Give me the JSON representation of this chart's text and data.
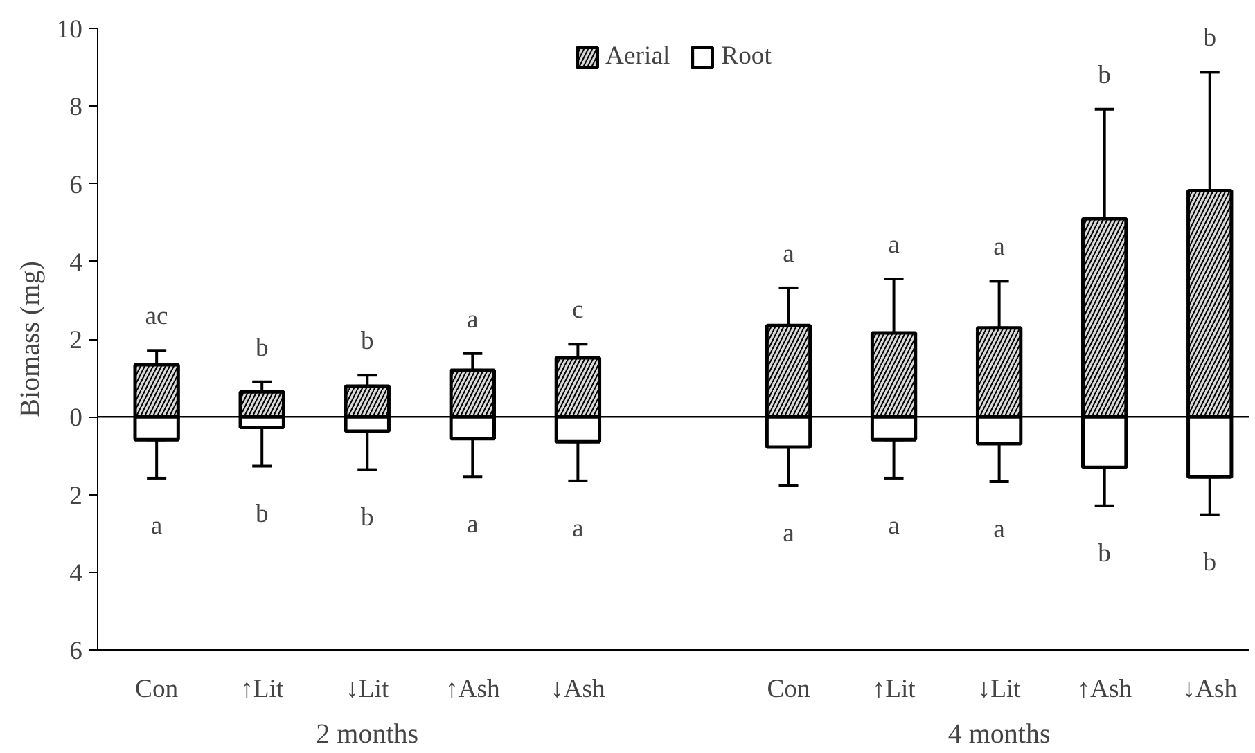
{
  "chart_data": {
    "type": "bar",
    "stacked": true,
    "ylabel": "Biomass (mg)",
    "categories": [
      "Con",
      "↑Lit",
      "↓Lit",
      "↑Ash",
      "↓Ash",
      null,
      "Con",
      "↑Lit",
      "↓Lit",
      "↑Ash",
      "↓Ash"
    ],
    "series": [
      {
        "name": "Aerial",
        "color": "#d9d9d9",
        "values": [
          1.34,
          0.64,
          0.79,
          1.2,
          1.52,
          null,
          2.35,
          2.16,
          2.29,
          5.1,
          5.82
        ],
        "errors": [
          [
            1.34,
            1.71
          ],
          [
            0.64,
            0.9
          ],
          [
            0.79,
            1.07
          ],
          [
            1.2,
            1.63
          ],
          [
            1.52,
            1.87
          ],
          null,
          [
            2.35,
            3.32
          ],
          [
            2.16,
            3.55
          ],
          [
            2.29,
            3.49
          ],
          [
            5.1,
            7.92
          ],
          [
            5.82,
            8.87
          ]
        ]
      },
      {
        "name": "Root",
        "color": "#ffffff",
        "values": [
          -0.59,
          -0.27,
          -0.37,
          -0.56,
          -0.64,
          null,
          -0.78,
          -0.59,
          -0.69,
          -1.3,
          -1.55
        ],
        "errors": [
          [
            -1.58,
            -0.59
          ],
          [
            -1.27,
            -0.27
          ],
          [
            -1.36,
            -0.37
          ],
          [
            -1.55,
            -0.56
          ],
          [
            -1.65,
            -0.64
          ],
          null,
          [
            -1.77,
            -0.78
          ],
          [
            -1.58,
            -0.59
          ],
          [
            -1.67,
            -0.69
          ],
          [
            -2.29,
            -1.3
          ],
          [
            -2.52,
            -1.55
          ]
        ]
      }
    ],
    "ylim": [
      -6,
      10
    ],
    "yticks": [
      {
        "value": -6,
        "label": "6"
      },
      {
        "value": -4,
        "label": "4"
      },
      {
        "value": -2,
        "label": "2"
      },
      0,
      2,
      4,
      6,
      8,
      10
    ],
    "ref_lines": [
      {
        "axis": "y",
        "value": 0,
        "label": null
      }
    ],
    "annotations": [
      "2 months",
      "4 months",
      "ac",
      "b",
      "b",
      "a",
      "c",
      "a",
      "a",
      "a",
      "b",
      "b",
      "a",
      "b",
      "b",
      "a",
      "a",
      "a",
      "a",
      "a",
      "b",
      "b"
    ],
    "legend": "top",
    "grid": false
  }
}
